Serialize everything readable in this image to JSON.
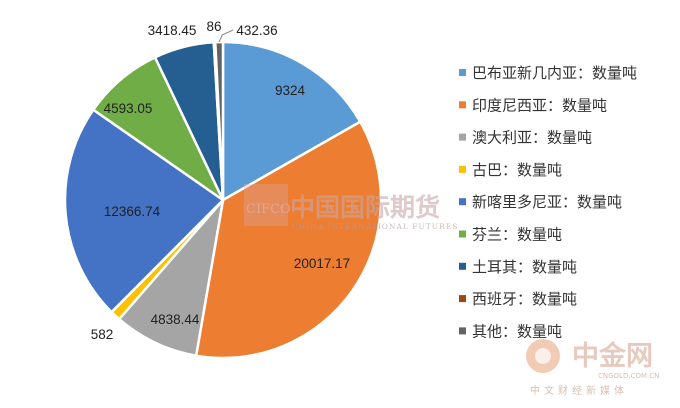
{
  "chart_data": {
    "type": "pie",
    "title": "",
    "slices": [
      {
        "name": "巴布亚新几内亚：数量吨",
        "value": 9324,
        "label": "9324",
        "color": "#5b9bd5"
      },
      {
        "name": "印度尼西亚：数量吨",
        "value": 20017.17,
        "label": "20017.17",
        "color": "#ed7d31"
      },
      {
        "name": "澳大利亚：数量吨",
        "value": 4838.44,
        "label": "4838.44",
        "color": "#a5a5a5"
      },
      {
        "name": "古巴：数量吨",
        "value": 582,
        "label": "582",
        "color": "#ffc000"
      },
      {
        "name": "新喀里多尼亚：数量吨",
        "value": 12366.74,
        "label": "12366.74",
        "color": "#4472c4"
      },
      {
        "name": "芬兰：数量吨",
        "value": 4593.05,
        "label": "4593.05",
        "color": "#70ad47"
      },
      {
        "name": "土耳其：数量吨",
        "value": 3418.45,
        "label": "3418.45",
        "color": "#255e91"
      },
      {
        "name": "西班牙：数量吨",
        "value": 86,
        "label": "86",
        "color": "#9e480e"
      },
      {
        "name": "其他：数量吨",
        "value": 432.36,
        "label": "432.36",
        "color": "#636363"
      }
    ],
    "legend_position": "right",
    "start_angle_deg": 0,
    "direction": "clockwise"
  },
  "watermarks": {
    "cifco_logo": "CIFCO",
    "cifco_cn": "中国国际期货",
    "cifco_en": "CHINA INTERNATIONAL FUTURES",
    "cngold_cn": "中金网",
    "cngold_url": "CNGOLD.COM.CN",
    "cngold_sub": "中文财经新媒体"
  }
}
